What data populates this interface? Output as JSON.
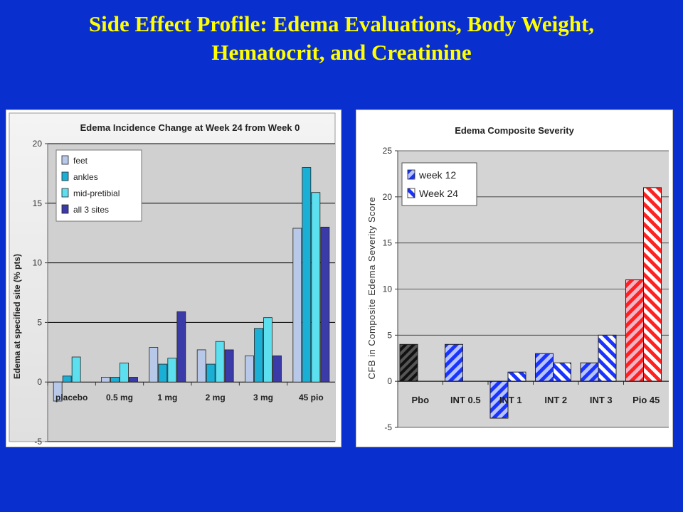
{
  "slide": {
    "title_line1": "Side Effect Profile: Edema Evaluations, Body Weight,",
    "title_line2": "Hematocrit, and Creatinine"
  },
  "chart_data": [
    {
      "type": "bar",
      "title": "Edema Incidence Change at Week 24 from Week 0",
      "xlabel": "",
      "ylabel": "Edema at specified site (% pts)",
      "categories": [
        "placebo",
        "0.5 mg",
        "1 mg",
        "2 mg",
        "3 mg",
        "45 pio"
      ],
      "ylim": [
        -5,
        20
      ],
      "yticks": [
        -5,
        0,
        5,
        10,
        15,
        20
      ],
      "grid": true,
      "legend": "top-left",
      "series": [
        {
          "name": "feet",
          "color": "#b8c8e8",
          "values": [
            -1.6,
            0.4,
            2.9,
            2.7,
            2.2,
            12.9
          ]
        },
        {
          "name": "ankles",
          "color": "#1ab0d6",
          "values": [
            0.5,
            0.4,
            1.5,
            1.5,
            4.5,
            18.0
          ]
        },
        {
          "name": "mid-pretibial",
          "color": "#5ce0f0",
          "values": [
            2.1,
            1.6,
            2.0,
            3.4,
            5.4,
            15.9
          ]
        },
        {
          "name": "all 3 sites",
          "color": "#3a3aa8",
          "values": [
            0,
            0.4,
            5.9,
            2.7,
            2.2,
            13.0
          ]
        }
      ]
    },
    {
      "type": "bar",
      "title": "Edema Composite Severity",
      "xlabel": "",
      "ylabel": "CFB in Composite Edema Severity Score",
      "categories": [
        "Pbo",
        "INT 0.5",
        "INT 1",
        "INT 2",
        "INT 3",
        "Pio 45"
      ],
      "ylim": [
        -5,
        25
      ],
      "yticks": [
        -5,
        0,
        5,
        10,
        15,
        20,
        25
      ],
      "grid": true,
      "legend": "top-left",
      "series": [
        {
          "name": "week 12",
          "values": [
            4,
            4,
            -4,
            3,
            2,
            11
          ]
        },
        {
          "name": "Week 24",
          "values": [
            null,
            null,
            1,
            2,
            5,
            21
          ]
        }
      ],
      "colors": {
        "pbo": "#111111",
        "int": "#1a33ff",
        "pio": "#ff2020"
      }
    }
  ]
}
